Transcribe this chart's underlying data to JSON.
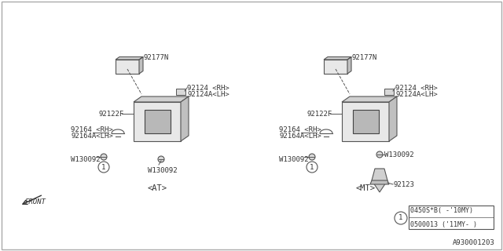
{
  "bg_color": "#f0f0f0",
  "border_color": "#999999",
  "line_color": "#555555",
  "text_color": "#333333",
  "title": "",
  "diagram_id": "A930001203",
  "legend_line1": "0450S*B( -'10MY)",
  "legend_line2": "0500013 ('11MY- )",
  "at_label": "<AT>",
  "mt_label": "<MT>",
  "front_label": "FRONT",
  "parts": {
    "92177N": "92177N",
    "92124RH": "92124 <RH>",
    "92124ALH": "92124A<LH>",
    "92122F": "92122F",
    "92164RH": "92164 <RH>",
    "92164ALH": "92164A<LH>",
    "W130092": "W130092",
    "92123": "92123"
  }
}
